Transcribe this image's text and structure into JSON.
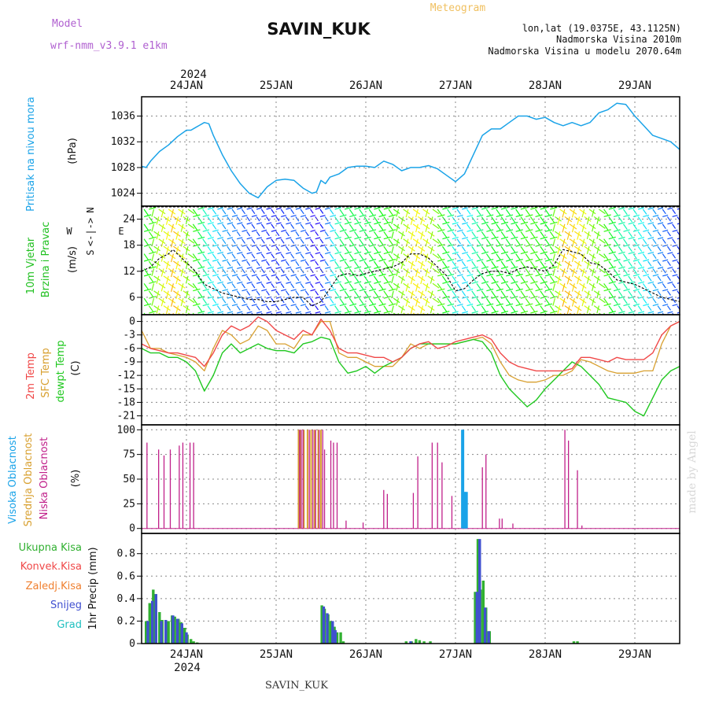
{
  "header": {
    "model_label": "Model",
    "model_name": "wrf-nmm_v3.9.1  e1km",
    "station_title": "SAVIN_KUK",
    "meteogram_label": "Meteogram",
    "lonlat": "lon,lat (19.0375E, 43.1125N)",
    "altitude": "Nadmorska Visina 2010m",
    "model_altitude": "Nadmorska Visina u modelu 2070.64m",
    "year": "2024",
    "footer_station": "SAVIN_KUK",
    "watermark": "made by Angel"
  },
  "colors": {
    "model": "#b060d0",
    "meteogram": "#f0c060",
    "info": "#b040d0",
    "pressure": "#1aa3e8",
    "wind_label": "#20c020",
    "wind_speed_line": "#000000",
    "temp": "#f04848",
    "sfc": "#d8a030",
    "dew": "#20c820",
    "cloud_high": "#1aa3e8",
    "cloud_mid": "#d8a030",
    "cloud_low": "#c0208a",
    "precip_total": "#30b030",
    "precip_conv": "#f04848",
    "precip_frozen": "#f08030",
    "precip_snow": "#4050d0",
    "precip_grad": "#20c0c0"
  },
  "x_axis": {
    "start_day": 23.5,
    "end_day": 29.5,
    "day_labels": [
      "24JAN",
      "25JAN",
      "26JAN",
      "27JAN",
      "28JAN",
      "29JAN"
    ],
    "day_values": [
      24,
      25,
      26,
      27,
      28,
      29
    ]
  },
  "panels": {
    "pressure": {
      "label": "Pritisak na nivou mora",
      "unit": "(hPa)",
      "ticks": [
        "1024",
        "1028",
        "1032",
        "1036"
      ],
      "ylim": [
        1022,
        1039
      ]
    },
    "wind": {
      "label1": "10m Vjetar",
      "label2": "Brzina i Pravac",
      "unit": "(m/s)",
      "ticks": [
        "6",
        "12",
        "18",
        "24"
      ],
      "ylim": [
        2,
        27
      ],
      "compass_w": "W",
      "compass_e": "E",
      "compass_n": "N",
      "compass_s": "S",
      "compass_arrows": "<-|->"
    },
    "temperature": {
      "label1": "2m Temp",
      "label2": "SFC Temp",
      "label3": "dewpt Temp",
      "unit": "(C)",
      "ticks": [
        "0",
        "-3",
        "-6",
        "-9",
        "-12",
        "-15",
        "-18",
        "-21"
      ],
      "ylim": [
        -23,
        1.5
      ]
    },
    "cloud": {
      "label1": "Visoka Oblacnost",
      "label2": "Srednja Oblacnost",
      "label3": "Niska Oblacnost",
      "unit": "(%)",
      "ticks": [
        "0",
        "25",
        "50",
        "75",
        "100"
      ],
      "ylim": [
        -5,
        105
      ]
    },
    "precip": {
      "label1": "Ukupna Kisa",
      "label2": "Konvek.Kisa",
      "label3": "Zaledj.Kisa",
      "label4": "Snijeg",
      "label5": "Grad",
      "unit": "1hr Precip (mm)",
      "ticks": [
        "0",
        "0.2",
        "0.4",
        "0.6",
        "0.8"
      ],
      "ylim": [
        0,
        0.98
      ]
    }
  },
  "chart_data": [
    {
      "type": "line",
      "ylabel": "Pritisak na nivou mora (hPa)",
      "ylim": [
        1022,
        1039
      ],
      "series": [],
      "x": [
        23.5,
        23.55,
        23.6,
        23.7,
        23.8,
        23.9,
        24.0,
        24.05,
        24.1,
        24.2,
        24.25,
        24.3,
        24.4,
        24.5,
        24.6,
        24.7,
        24.8,
        24.9,
        25.0,
        25.1,
        25.2,
        25.3,
        25.4,
        25.45,
        25.5,
        25.55,
        25.6,
        25.7,
        25.8,
        25.9,
        26.0,
        26.1,
        26.2,
        26.3,
        26.4,
        26.5,
        26.6,
        26.7,
        26.8,
        26.9,
        27.0,
        27.1,
        27.2,
        27.3,
        27.4,
        27.5,
        27.6,
        27.7,
        27.8,
        27.9,
        28.0,
        28.1,
        28.2,
        28.3,
        28.4,
        28.5,
        28.6,
        28.7,
        28.8,
        28.9,
        29.0,
        29.1,
        29.2,
        29.3,
        29.4,
        29.5
      ],
      "y": [
        1028.2,
        1028.0,
        1029.0,
        1030.5,
        1031.5,
        1032.8,
        1033.8,
        1033.8,
        1034.2,
        1035.0,
        1034.8,
        1033.0,
        1030.0,
        1027.5,
        1025.5,
        1024.0,
        1023.3,
        1025.0,
        1026.0,
        1026.2,
        1026.0,
        1024.8,
        1024.0,
        1024.2,
        1026.0,
        1025.5,
        1026.5,
        1027.0,
        1028.0,
        1028.2,
        1028.2,
        1028.0,
        1029.0,
        1028.5,
        1027.5,
        1028.0,
        1028.0,
        1028.3,
        1027.8,
        1026.8,
        1025.8,
        1027.0,
        1030.0,
        1033.0,
        1034.0,
        1034.0,
        1035.0,
        1036.0,
        1036.0,
        1035.5,
        1035.8,
        1035.0,
        1034.5,
        1035.0,
        1034.5,
        1035.0,
        1036.5,
        1037.0,
        1038.0,
        1037.8,
        1036.0,
        1034.5,
        1033.0,
        1032.5,
        1032.0,
        1030.8
      ]
    },
    {
      "type": "line",
      "ylabel": "10m Vjetar Brzina i Pravac (m/s)",
      "ylim": [
        2,
        27
      ],
      "series": [],
      "x": [
        23.5,
        23.6,
        23.7,
        23.8,
        23.85,
        23.9,
        24.0,
        24.1,
        24.2,
        24.3,
        24.4,
        24.5,
        24.6,
        24.7,
        24.8,
        24.9,
        25.0,
        25.1,
        25.2,
        25.3,
        25.4,
        25.5,
        25.6,
        25.7,
        25.8,
        25.9,
        26.0,
        26.1,
        26.2,
        26.3,
        26.4,
        26.5,
        26.6,
        26.7,
        26.8,
        26.9,
        27.0,
        27.1,
        27.2,
        27.3,
        27.4,
        27.5,
        27.6,
        27.7,
        27.8,
        27.9,
        28.0,
        28.1,
        28.2,
        28.3,
        28.4,
        28.5,
        28.6,
        28.7,
        28.8,
        28.9,
        29.0,
        29.1,
        29.2,
        29.3,
        29.4,
        29.5
      ],
      "y": [
        12,
        13,
        15,
        16,
        17,
        16,
        14,
        12,
        9,
        8,
        7,
        6.5,
        6,
        5.5,
        5.5,
        5,
        5,
        5.5,
        6,
        6,
        4,
        5,
        8,
        11,
        11.5,
        11,
        11.5,
        12,
        12.5,
        13,
        14,
        16,
        16,
        15,
        13,
        11,
        7.5,
        8,
        10,
        11.5,
        12,
        12,
        11.5,
        12.5,
        13,
        12.5,
        12,
        13.5,
        17,
        16.5,
        16,
        14,
        13.5,
        12,
        10,
        9.5,
        9,
        8,
        7,
        6,
        5.5,
        5
      ]
    },
    {
      "type": "line",
      "ylabel": "(C)",
      "ylim": [
        -23,
        1.5
      ],
      "series": [
        {
          "name": "2m Temp",
          "x": [
            23.5,
            23.6,
            23.7,
            23.8,
            23.9,
            24.0,
            24.1,
            24.2,
            24.3,
            24.4,
            24.5,
            24.6,
            24.7,
            24.8,
            24.9,
            25.0,
            25.1,
            25.2,
            25.3,
            25.4,
            25.5,
            25.6,
            25.7,
            25.8,
            25.9,
            26.0,
            26.1,
            26.2,
            26.3,
            26.4,
            26.5,
            26.6,
            26.7,
            26.8,
            26.9,
            27.0,
            27.1,
            27.2,
            27.3,
            27.4,
            27.5,
            27.6,
            27.7,
            27.8,
            27.9,
            28.0,
            28.1,
            28.2,
            28.3,
            28.4,
            28.5,
            28.6,
            28.7,
            28.8,
            28.9,
            29.0,
            29.1,
            29.2,
            29.3,
            29.4,
            29.5
          ],
          "y": [
            -5,
            -6,
            -6.5,
            -7,
            -7,
            -7.5,
            -8,
            -10,
            -7,
            -3,
            -1,
            -2,
            -1,
            1,
            0,
            -2,
            -3,
            -4,
            -2,
            -3,
            0.5,
            -2,
            -6,
            -7,
            -7,
            -7.5,
            -8,
            -8,
            -9,
            -8,
            -6,
            -5,
            -4.5,
            -6,
            -5.5,
            -4.5,
            -4,
            -3.5,
            -3,
            -4,
            -7,
            -9,
            -10,
            -10.5,
            -11,
            -11,
            -11,
            -11,
            -10.5,
            -8,
            -8,
            -8.5,
            -9,
            -8,
            -8.5,
            -8.5,
            -8.5,
            -7,
            -3,
            -1,
            0
          ]
        },
        {
          "name": "SFC Temp",
          "x": [
            23.5,
            23.6,
            23.7,
            23.8,
            23.9,
            24.0,
            24.1,
            24.2,
            24.3,
            24.4,
            24.5,
            24.6,
            24.7,
            24.8,
            24.9,
            25.0,
            25.1,
            25.2,
            25.3,
            25.4,
            25.5,
            25.6,
            25.7,
            25.8,
            25.9,
            26.0,
            26.1,
            26.2,
            26.3,
            26.4,
            26.5,
            26.6,
            26.7,
            26.8,
            26.9,
            27.0,
            27.1,
            27.2,
            27.3,
            27.4,
            27.5,
            27.6,
            27.7,
            27.8,
            27.9,
            28.0,
            28.1,
            28.2,
            28.3,
            28.4,
            28.5,
            28.6,
            28.7,
            28.8,
            28.9,
            29.0,
            29.1,
            29.2,
            29.3,
            29.4,
            29.5
          ],
          "y": [
            -2,
            -6,
            -6,
            -7,
            -7.5,
            -8,
            -9,
            -11,
            -6,
            -2,
            -3,
            -5,
            -4,
            -1,
            -2,
            -5,
            -5,
            -6,
            -3,
            -3,
            0,
            0,
            -7,
            -8,
            -8,
            -9,
            -10,
            -10,
            -10,
            -8,
            -5,
            -6,
            -5,
            -5,
            -5,
            -5,
            -4.5,
            -4,
            -3.5,
            -5,
            -9,
            -12,
            -13,
            -13.5,
            -13.5,
            -13,
            -12,
            -12,
            -11,
            -8.5,
            -9,
            -10,
            -11,
            -11.5,
            -11.5,
            -11.5,
            -11,
            -11,
            -5,
            -1,
            0
          ]
        },
        {
          "name": "dewpt Temp",
          "x": [
            23.5,
            23.6,
            23.7,
            23.8,
            23.9,
            24.0,
            24.1,
            24.2,
            24.3,
            24.4,
            24.5,
            24.6,
            24.7,
            24.8,
            24.9,
            25.0,
            25.1,
            25.2,
            25.3,
            25.4,
            25.5,
            25.6,
            25.7,
            25.8,
            25.9,
            26.0,
            26.1,
            26.2,
            26.3,
            26.4,
            26.5,
            26.6,
            26.7,
            26.8,
            26.9,
            27.0,
            27.1,
            27.2,
            27.3,
            27.4,
            27.5,
            27.6,
            27.7,
            27.8,
            27.9,
            28.0,
            28.1,
            28.2,
            28.3,
            28.4,
            28.5,
            28.6,
            28.7,
            28.8,
            28.9,
            29.0,
            29.1,
            29.2,
            29.3,
            29.4,
            29.5
          ],
          "y": [
            -6,
            -7,
            -7,
            -8,
            -8,
            -9,
            -11,
            -15.5,
            -12,
            -7,
            -5,
            -7,
            -6,
            -5,
            -6,
            -6.5,
            -6.5,
            -7,
            -5,
            -4.5,
            -3.5,
            -4,
            -9,
            -11.5,
            -11,
            -10,
            -11.5,
            -10,
            -9,
            -8,
            -6,
            -5,
            -5,
            -5,
            -5,
            -5,
            -4.5,
            -4,
            -4.5,
            -7,
            -12,
            -15,
            -17,
            -19,
            -17.5,
            -15,
            -13,
            -11,
            -9,
            -10,
            -12,
            -14,
            -17,
            -17.5,
            -18,
            -20,
            -21,
            -17,
            -13,
            -11,
            -10
          ]
        }
      ]
    },
    {
      "type": "bar",
      "ylabel": "(%)",
      "ylim": [
        0,
        100
      ],
      "series": [
        {
          "name": "Niska Oblacnost",
          "x": [
            23.56,
            23.69,
            23.75,
            23.82,
            23.92,
            23.96,
            24.04,
            24.08,
            25.26,
            25.28,
            25.3,
            25.37,
            25.41,
            25.44,
            25.48,
            25.52,
            25.54,
            25.61,
            25.64,
            25.68,
            25.78,
            25.97,
            26.2,
            26.24,
            26.53,
            26.58,
            26.74,
            26.8,
            26.85,
            26.96,
            27.08,
            27.3,
            27.34,
            27.49,
            27.52,
            27.64,
            28.22,
            28.26,
            28.36,
            28.41
          ],
          "y": [
            87,
            80,
            74,
            80,
            84,
            87,
            87,
            87,
            100,
            100,
            100,
            100,
            100,
            100,
            100,
            100,
            80,
            89,
            87,
            87,
            8,
            6,
            39,
            35,
            36,
            73,
            87,
            87,
            67,
            33,
            100,
            62,
            75,
            10,
            10,
            5,
            100,
            89,
            59,
            3
          ]
        },
        {
          "name": "Srednja Oblacnost",
          "x": [
            25.25,
            25.27,
            25.31,
            25.35,
            25.39,
            25.43,
            25.47,
            25.5
          ],
          "y": [
            100,
            100,
            100,
            100,
            100,
            100,
            100,
            100
          ]
        },
        {
          "name": "Visoka Oblacnost",
          "x": [
            27.08,
            27.1,
            27.12
          ],
          "y": [
            100,
            37,
            37
          ]
        }
      ]
    },
    {
      "type": "bar",
      "ylabel": "1hr Precip (mm)",
      "ylim": [
        0,
        0.98
      ],
      "series": [
        {
          "name": "Ukupna Kisa",
          "x": [
            23.55,
            23.59,
            23.63,
            23.66,
            23.7,
            23.73,
            23.77,
            23.8,
            23.84,
            23.87,
            23.91,
            23.94,
            23.98,
            24.01,
            24.05,
            24.08,
            24.12,
            25.51,
            25.54,
            25.58,
            25.61,
            25.65,
            25.68,
            25.72,
            25.75,
            26.45,
            26.51,
            26.56,
            26.6,
            26.65,
            26.72,
            27.22,
            27.25,
            27.28,
            27.31,
            27.34,
            27.38,
            28.32,
            28.36
          ],
          "y": [
            0.2,
            0.36,
            0.48,
            0.44,
            0.28,
            0.21,
            0.21,
            0.2,
            0.25,
            0.24,
            0.22,
            0.19,
            0.14,
            0.08,
            0.04,
            0.02,
            0.01,
            0.34,
            0.31,
            0.26,
            0.2,
            0.15,
            0.1,
            0.1,
            0.02,
            0.02,
            0.02,
            0.04,
            0.03,
            0.02,
            0.02,
            0.46,
            0.93,
            0.48,
            0.56,
            0.32,
            0.11,
            0.02,
            0.02
          ]
        },
        {
          "name": "Snijeg",
          "x": [
            23.57,
            23.62,
            23.66,
            23.72,
            23.77,
            23.85,
            23.9,
            23.95,
            24.0,
            25.53,
            25.57,
            25.63,
            25.66,
            26.5,
            27.24,
            27.27,
            27.33,
            27.37
          ],
          "y": [
            0.2,
            0.38,
            0.44,
            0.2,
            0.21,
            0.25,
            0.22,
            0.18,
            0.1,
            0.33,
            0.27,
            0.2,
            0.12,
            0.02,
            0.46,
            0.93,
            0.32,
            0.11
          ]
        }
      ]
    }
  ]
}
